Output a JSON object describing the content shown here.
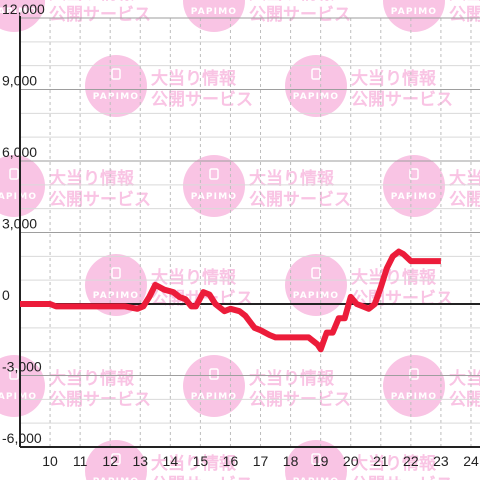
{
  "chart_data": {
    "type": "line",
    "x": [
      9.0,
      10.0,
      10.2,
      11.0,
      12.0,
      12.5,
      12.9,
      13.1,
      13.3,
      13.5,
      13.8,
      14.1,
      14.3,
      14.5,
      14.7,
      14.85,
      15.1,
      15.3,
      15.5,
      15.8,
      16.0,
      16.3,
      16.5,
      16.8,
      17.0,
      17.3,
      17.5,
      17.8,
      18.0,
      18.3,
      18.6,
      18.9,
      19.0,
      19.2,
      19.4,
      19.6,
      19.8,
      20.0,
      20.2,
      20.4,
      20.6,
      20.8,
      21.0,
      21.2,
      21.4,
      21.6,
      21.75,
      22.0,
      22.3,
      22.6,
      23.0
    ],
    "y": [
      0,
      0,
      -100,
      -100,
      -100,
      -100,
      -200,
      -100,
      300,
      800,
      600,
      500,
      300,
      200,
      -100,
      -100,
      500,
      400,
      0,
      -300,
      -200,
      -300,
      -500,
      -1000,
      -1100,
      -1300,
      -1400,
      -1400,
      -1400,
      -1400,
      -1400,
      -1700,
      -1900,
      -1200,
      -1200,
      -600,
      -600,
      300,
      0,
      -100,
      -200,
      0,
      700,
      1500,
      2000,
      2200,
      2100,
      1800,
      1800,
      1800,
      1800
    ],
    "ylim": [
      -6000,
      12000
    ],
    "xlim": [
      9.0,
      24.3
    ],
    "yticks": [
      "12,000",
      "9,000",
      "6,000",
      "3,000",
      "0",
      "-3,000",
      "-6,000"
    ],
    "ytick_values": [
      12000,
      9000,
      6000,
      3000,
      0,
      -3000,
      -6000
    ],
    "xticks": [
      "10",
      "11",
      "12",
      "13",
      "14",
      "15",
      "16",
      "17",
      "18",
      "19",
      "20",
      "21",
      "22",
      "23",
      "24"
    ],
    "xtick_values": [
      10,
      11,
      12,
      13,
      14,
      15,
      16,
      17,
      18,
      19,
      20,
      21,
      22,
      23,
      24
    ],
    "grid": true,
    "line_color": "#ec1c3a",
    "grid_color": "#bdbdbd",
    "axis_color": "#222222"
  },
  "watermark": {
    "logo_text": "PAPIMO",
    "line1": "大当り情報",
    "line2": "公開サービス",
    "color": "#f9c4e4"
  }
}
